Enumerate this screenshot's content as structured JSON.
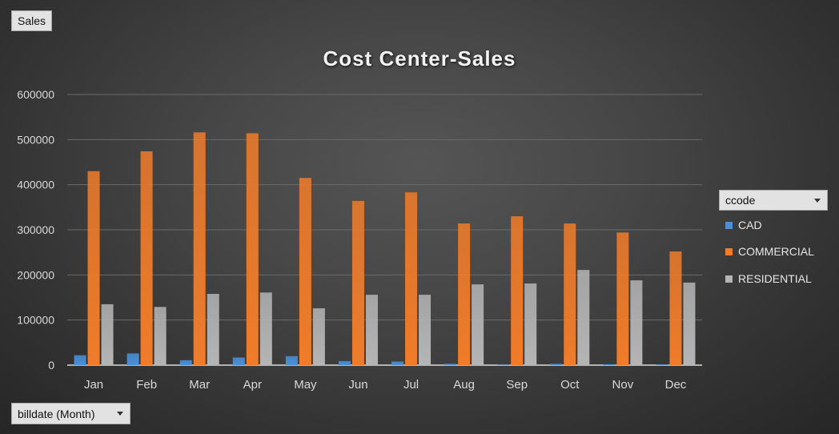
{
  "pivot": {
    "value_field": "Sales",
    "axis_field": "billdate (Month)",
    "legend_field": "ccode"
  },
  "colors": {
    "CAD": "#4a90d9",
    "COMMERCIAL": "#f07c2a",
    "RESIDENTIAL": "#b5b5b5"
  },
  "chart_data": {
    "type": "bar",
    "title": "Cost Center-Sales",
    "xlabel": "",
    "ylabel": "",
    "ylim": [
      0,
      600000
    ],
    "yticks": [
      0,
      100000,
      200000,
      300000,
      400000,
      500000,
      600000
    ],
    "grid": true,
    "legend_position": "right",
    "categories": [
      "Jan",
      "Feb",
      "Mar",
      "Apr",
      "May",
      "Jun",
      "Jul",
      "Aug",
      "Sep",
      "Oct",
      "Nov",
      "Dec"
    ],
    "series": [
      {
        "name": "CAD",
        "values": [
          22000,
          26000,
          11000,
          17000,
          20000,
          9000,
          8000,
          3000,
          1000,
          3000,
          2000,
          1500
        ]
      },
      {
        "name": "COMMERCIAL",
        "values": [
          430000,
          474000,
          516000,
          514000,
          415000,
          364000,
          383000,
          314000,
          330000,
          314000,
          294000,
          252000
        ]
      },
      {
        "name": "RESIDENTIAL",
        "values": [
          135000,
          129000,
          158000,
          161000,
          126000,
          156000,
          156000,
          179000,
          181000,
          211000,
          188000,
          183000
        ]
      }
    ]
  }
}
